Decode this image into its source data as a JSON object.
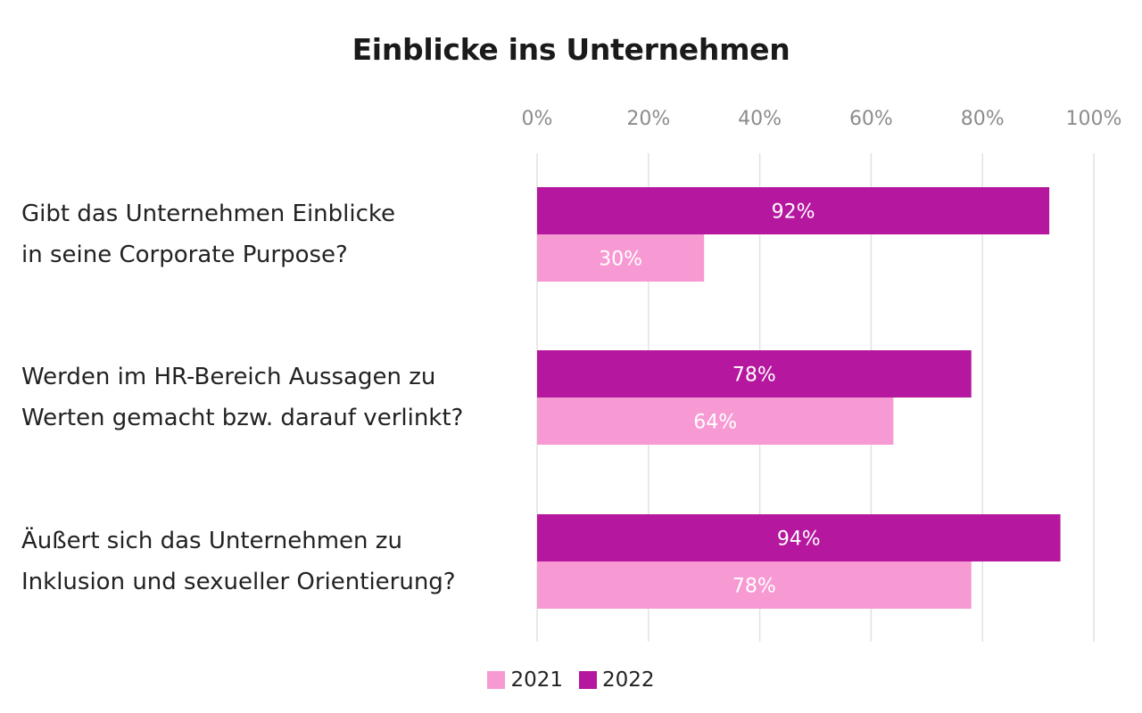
{
  "chart_data": {
    "type": "bar",
    "orientation": "horizontal",
    "title": "Einblicke ins Unternehmen",
    "categories": [
      [
        "Gibt das Unternehmen Einblicke",
        "in seine Corporate Purpose?"
      ],
      [
        "Werden im HR-Bereich Aussagen zu",
        "Werten gemacht bzw. darauf verlinkt?"
      ],
      [
        "Äußert sich das Unternehmen zu",
        "Inklusion und sexueller Orientierung?"
      ]
    ],
    "series": [
      {
        "name": "2022",
        "values": [
          92,
          78,
          94
        ],
        "color": "#b5179e"
      },
      {
        "name": "2021",
        "values": [
          30,
          64,
          78
        ],
        "color": "#f79ad3"
      }
    ],
    "value_suffix": "%",
    "xlim": [
      0,
      100
    ],
    "xticks": [
      "0%",
      "20%",
      "40%",
      "60%",
      "80%",
      "100%"
    ],
    "grid": true,
    "legend_position": "bottom",
    "legend_order": [
      "2021",
      "2022"
    ]
  }
}
